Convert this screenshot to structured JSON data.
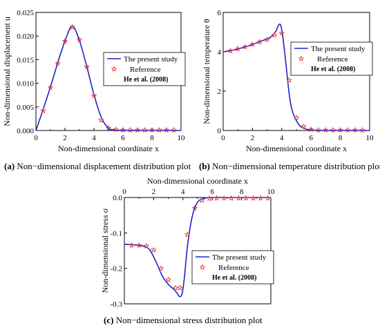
{
  "legend": {
    "line": "The present study",
    "marker": "Reference",
    "ref": "He et al. (2008)"
  },
  "captions": {
    "a_label": "(a)",
    "a_text": " Non−dimensional displacement distribution plot",
    "b_label": "(b)",
    "b_text": " Non−dimensional temperature distribution plot",
    "c_label": "(c)",
    "c_text": " Non−dimensional stress distribution plot"
  },
  "colors": {
    "line": "#1f1fd0",
    "marker": "#e8383a"
  },
  "chart_data": [
    {
      "type": "line",
      "xlabel": "Non-dimensional coordinate x",
      "ylabel": "Non-dimensional displacement u",
      "xlim": [
        0,
        10
      ],
      "ylim": [
        0,
        0.025
      ],
      "xticks": [
        0,
        2,
        4,
        6,
        8,
        10
      ],
      "xtick_labels": [
        "0",
        "2",
        "4",
        "6",
        "8",
        "10"
      ],
      "yticks": [
        0,
        0.005,
        0.01,
        0.015,
        0.02,
        0.025
      ],
      "ytick_labels": [
        "0.000",
        "0.005",
        "0.010",
        "0.015",
        "0.020",
        "0.025"
      ],
      "series": [
        {
          "name": "The present study",
          "style": "line",
          "x": [
            0,
            0.5,
            1,
            1.5,
            2,
            2.5,
            3,
            3.5,
            4,
            4.5,
            5,
            5.5,
            6,
            7,
            8,
            9,
            10
          ],
          "y": [
            0,
            0.0045,
            0.0092,
            0.0143,
            0.0189,
            0.0221,
            0.019,
            0.0136,
            0.0076,
            0.0028,
            0.0005,
            0.0001,
            0,
            0,
            0,
            0,
            0
          ]
        },
        {
          "name": "Reference",
          "style": "marker",
          "x": [
            0.5,
            1,
            1.5,
            2,
            2.5,
            3,
            3.5,
            4,
            4.5,
            5,
            5.5,
            6,
            6.5,
            7,
            7.5,
            8,
            8.5,
            9,
            9.5
          ],
          "y": [
            0.0042,
            0.0091,
            0.0142,
            0.0189,
            0.0219,
            0.0192,
            0.0135,
            0.0074,
            0.0022,
            0.0005,
            0.0002,
            0.0001,
            0.0001,
            0.0001,
            0.0001,
            0.0001,
            0.0001,
            0.0001,
            0.0001
          ]
        }
      ]
    },
    {
      "type": "line",
      "xlabel": "Non-dimensional coordinate x",
      "ylabel": "Non-dimensional temperature θ",
      "xlim": [
        0,
        10
      ],
      "ylim": [
        0,
        6
      ],
      "xticks": [
        0,
        2,
        4,
        6,
        8,
        10
      ],
      "xtick_labels": [
        "0",
        "2",
        "4",
        "6",
        "8",
        "10"
      ],
      "yticks": [
        0,
        2,
        4,
        6
      ],
      "ytick_labels": [
        "0",
        "2",
        "4",
        "6"
      ],
      "series": [
        {
          "name": "The present study",
          "style": "line",
          "x": [
            0,
            0.5,
            1,
            1.5,
            2,
            2.5,
            3,
            3.3,
            3.6,
            3.8,
            3.95,
            4.1,
            4.3,
            4.5,
            4.7,
            5.0,
            5.3,
            5.7,
            6,
            7,
            8,
            9,
            10
          ],
          "y": [
            4.0,
            4.06,
            4.14,
            4.25,
            4.37,
            4.52,
            4.65,
            4.78,
            5.05,
            5.38,
            5.3,
            4.6,
            3.3,
            1.9,
            1.05,
            0.5,
            0.2,
            0.06,
            0.02,
            0,
            0,
            0,
            0
          ]
        },
        {
          "name": "Reference",
          "style": "marker",
          "x": [
            0.5,
            1,
            1.5,
            2,
            2.5,
            3,
            3.5,
            4,
            4.5,
            5,
            5.5,
            6,
            6.5,
            7,
            7.5,
            8,
            8.5,
            9,
            9.5
          ],
          "y": [
            4.05,
            4.15,
            4.25,
            4.38,
            4.5,
            4.62,
            4.85,
            4.95,
            2.55,
            0.65,
            0.2,
            0.05,
            0.02,
            0.02,
            0.02,
            0.02,
            0.02,
            0.02,
            0.02
          ]
        }
      ]
    },
    {
      "type": "line",
      "xlabel": "Non-dimensional coordinate x",
      "ylabel": "Non-dimensional stress σ",
      "xaxis_position": "top",
      "xlim": [
        0,
        10
      ],
      "ylim": [
        -0.3,
        0
      ],
      "xticks": [
        0,
        2,
        4,
        6,
        8,
        10
      ],
      "xtick_labels": [
        "0",
        "2",
        "4",
        "6",
        "8",
        "10"
      ],
      "yticks": [
        0,
        -0.1,
        -0.2,
        -0.3
      ],
      "ytick_labels": [
        "0.0",
        "-0.1",
        "-0.2",
        "-0.3"
      ],
      "series": [
        {
          "name": "The present study",
          "style": "line",
          "x": [
            0,
            0.5,
            1,
            1.5,
            1.8,
            2.2,
            2.6,
            3.0,
            3.4,
            3.65,
            3.8,
            3.95,
            4.1,
            4.3,
            4.6,
            4.9,
            5.2,
            5.6,
            6,
            7,
            8,
            9,
            10
          ],
          "y": [
            -0.132,
            -0.133,
            -0.135,
            -0.14,
            -0.152,
            -0.185,
            -0.222,
            -0.245,
            -0.26,
            -0.273,
            -0.28,
            -0.27,
            -0.225,
            -0.14,
            -0.06,
            -0.02,
            -0.006,
            -0.001,
            0,
            0,
            0,
            0,
            0
          ]
        },
        {
          "name": "Reference",
          "style": "marker",
          "x": [
            0.5,
            1,
            1.5,
            2,
            2.5,
            3,
            3.5,
            3.8,
            4.3,
            4.8,
            5.3,
            5.8,
            6.3,
            6.8,
            7.3,
            7.8,
            8.3,
            8.8,
            9.3,
            9.8
          ],
          "y": [
            -0.135,
            -0.135,
            -0.137,
            -0.148,
            -0.2,
            -0.232,
            -0.255,
            -0.255,
            -0.105,
            -0.03,
            -0.008,
            -0.003,
            -0.002,
            -0.002,
            -0.002,
            -0.002,
            -0.002,
            -0.002,
            -0.002,
            -0.002
          ]
        }
      ]
    }
  ]
}
